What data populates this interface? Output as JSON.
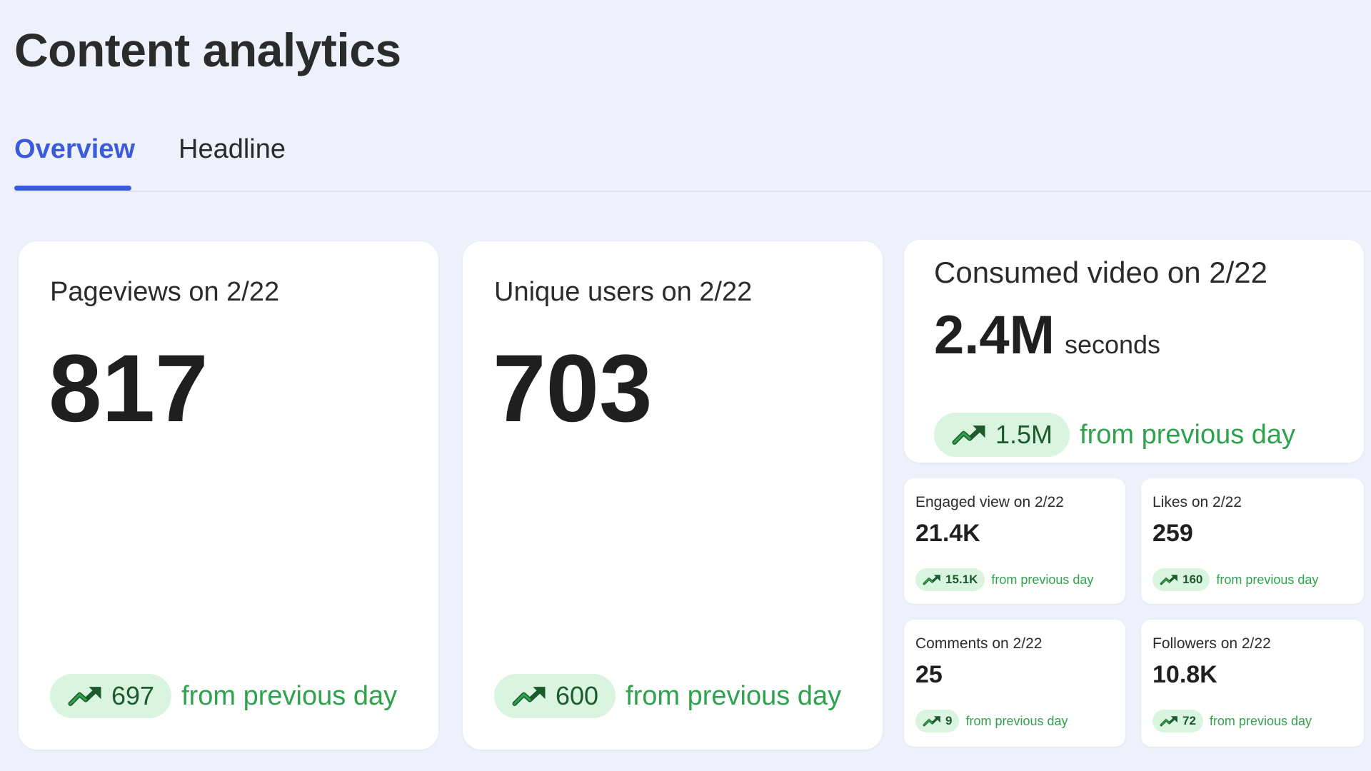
{
  "header": {
    "title": "Content analytics"
  },
  "tabs": [
    {
      "label": "Overview",
      "active": true
    },
    {
      "label": "Headline",
      "active": false
    }
  ],
  "colors": {
    "accent": "#3b5bdb",
    "positive": "#2fa24d",
    "pill_bg": "#daf5df",
    "page_bg": "#eef1fb"
  },
  "trend_icon": "trending-up-icon",
  "cards": {
    "pageviews": {
      "label": "Pageviews on 2/22",
      "value": "817",
      "delta": "697",
      "delta_text": "from previous day"
    },
    "unique_users": {
      "label": "Unique users on 2/22",
      "value": "703",
      "delta": "600",
      "delta_text": "from previous day"
    },
    "consumed_video": {
      "label": "Consumed video on 2/22",
      "value": "2.4M",
      "unit": "seconds",
      "delta": "1.5M",
      "delta_text": "from previous day"
    },
    "engaged_view": {
      "label": "Engaged view on 2/22",
      "value": "21.4K",
      "delta": "15.1K",
      "delta_text": "from previous day"
    },
    "likes": {
      "label": "Likes on 2/22",
      "value": "259",
      "delta": "160",
      "delta_text": "from previous day"
    },
    "comments": {
      "label": "Comments on 2/22",
      "value": "25",
      "delta": "9",
      "delta_text": "from previous day"
    },
    "followers": {
      "label": "Followers on 2/22",
      "value": "10.8K",
      "delta": "72",
      "delta_text": "from previous day"
    }
  }
}
